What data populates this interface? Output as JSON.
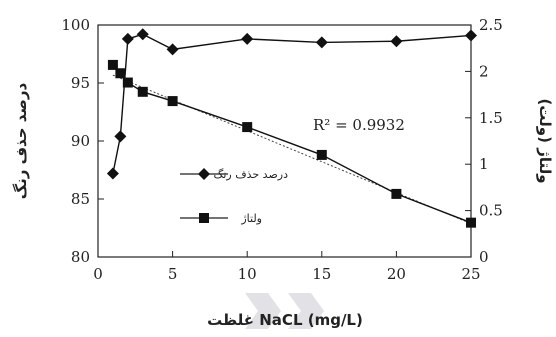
{
  "chart_data": {
    "type": "line",
    "xlabel": "غلظت NaCL (mg/L)",
    "ylabel_left": "درصد حذف رنگ",
    "ylabel_right": "ولتاژ (ولت)",
    "x_ticks": [
      "0",
      "5",
      "10",
      "15",
      "20",
      "25"
    ],
    "y_left_ticks": [
      "80",
      "85",
      "90",
      "95",
      "100"
    ],
    "y_right_ticks": [
      "0",
      "0.5",
      "1",
      "1.5",
      "2",
      "2.5"
    ],
    "xlim": [
      0,
      25
    ],
    "ylim_left": [
      80,
      100
    ],
    "ylim_right": [
      0,
      2.5
    ],
    "annotation": "R² = 0.9932",
    "series": [
      {
        "name": "درصد حذف رنگ",
        "axis": "left",
        "marker": "diamond",
        "x": [
          1,
          1.5,
          2,
          3,
          5,
          10,
          15,
          20,
          25
        ],
        "y": [
          87.2,
          90.4,
          98.8,
          99.2,
          97.9,
          98.8,
          98.5,
          98.6,
          99.1
        ]
      },
      {
        "name": "ولتاژ",
        "axis": "right",
        "marker": "square",
        "x": [
          1,
          1.5,
          2,
          3,
          5,
          10,
          15,
          20,
          25
        ],
        "y": [
          2.07,
          1.98,
          1.88,
          1.78,
          1.68,
          1.4,
          1.1,
          0.68,
          0.37
        ]
      }
    ],
    "trendline": {
      "series": "ولتاژ",
      "style": "dotted",
      "x": [
        1,
        25
      ],
      "y": [
        1.96,
        0.36
      ]
    }
  }
}
